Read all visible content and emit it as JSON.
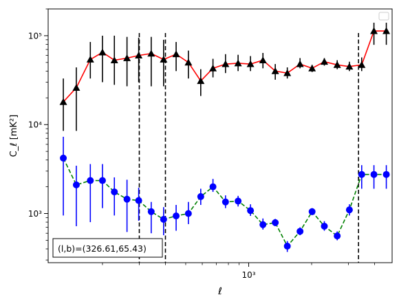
{
  "chart_data": {
    "type": "scatter",
    "xscale": "log",
    "yscale": "log",
    "xlim": [
      110,
      4850
    ],
    "ylim": [
      280,
      200000
    ],
    "xlabel": "ℓ",
    "ylabel": "C_ℓ [mK²]",
    "x_major_ticks": [
      {
        "value": 1000,
        "label": "10³"
      }
    ],
    "y_major_ticks": [
      {
        "value": 1000,
        "label": "10³"
      },
      {
        "value": 10000,
        "label": "10⁴"
      },
      {
        "value": 100000,
        "label": "10⁵"
      }
    ],
    "annotation": "(l,b)=(326.61,65.43)",
    "legend": {
      "placement": "upper-right",
      "entries": []
    },
    "vlines": [
      {
        "x": 300
      },
      {
        "x": 400
      },
      {
        "x": 3350
      }
    ],
    "series": [
      {
        "marker": "triangle",
        "marker_color": "#000000",
        "line_color": "#ff0000",
        "line_style": "solid",
        "errorbar_color": "#000000",
        "x": [
          130,
          150,
          175,
          200,
          228,
          262,
          298,
          342,
          392,
          450,
          515,
          590,
          675,
          775,
          890,
          1020,
          1170,
          1340,
          1530,
          1760,
          2010,
          2300,
          2650,
          3030,
          3470,
          3970,
          4550
        ],
        "y": [
          18000,
          26000,
          54000,
          65000,
          53000,
          56000,
          60000,
          63000,
          54000,
          62000,
          50000,
          31000,
          43000,
          48000,
          49000,
          48000,
          53000,
          40000,
          38000,
          48000,
          43000,
          51000,
          47000,
          45000,
          47000,
          113000,
          113000
        ],
        "ylow": [
          8500,
          8500,
          33000,
          30000,
          28000,
          27000,
          30000,
          27000,
          27000,
          40000,
          33000,
          21000,
          34000,
          38000,
          40000,
          40000,
          43000,
          32000,
          33000,
          43000,
          39000,
          46000,
          42000,
          40000,
          40000,
          79000,
          79000
        ],
        "yhigh": [
          33000,
          44000,
          85000,
          100000,
          100000,
          97000,
          95000,
          97000,
          90000,
          85000,
          68000,
          42000,
          55000,
          62000,
          61000,
          59000,
          64000,
          48000,
          44000,
          56000,
          47000,
          56000,
          53000,
          51000,
          57000,
          140000,
          140000
        ]
      },
      {
        "marker": "circle",
        "marker_color": "#0000ff",
        "line_color": "#008000",
        "line_style": "dashed",
        "errorbar_color": "#0000ff",
        "x": [
          130,
          150,
          175,
          200,
          228,
          262,
          298,
          342,
          392,
          450,
          515,
          590,
          675,
          775,
          890,
          1020,
          1170,
          1340,
          1530,
          1760,
          2010,
          2300,
          2650,
          3030,
          3470,
          3970,
          4550
        ],
        "y": [
          4200,
          2100,
          2350,
          2350,
          1750,
          1450,
          1400,
          1050,
          860,
          940,
          1000,
          1550,
          2000,
          1350,
          1380,
          1080,
          750,
          790,
          430,
          630,
          1050,
          720,
          560,
          1100,
          2750,
          2750,
          2750
        ],
        "ylow": [
          950,
          720,
          800,
          1150,
          950,
          620,
          830,
          600,
          570,
          640,
          760,
          1250,
          1750,
          1150,
          1200,
          940,
          660,
          720,
          370,
          570,
          960,
          640,
          500,
          950,
          1900,
          1900,
          1900
        ],
        "yhigh": [
          7300,
          3450,
          3600,
          3600,
          2550,
          2400,
          1950,
          1350,
          1180,
          1250,
          1350,
          1900,
          2450,
          1600,
          1580,
          1270,
          880,
          870,
          490,
          700,
          1150,
          820,
          630,
          1270,
          3500,
          3500,
          3500
        ]
      }
    ]
  }
}
